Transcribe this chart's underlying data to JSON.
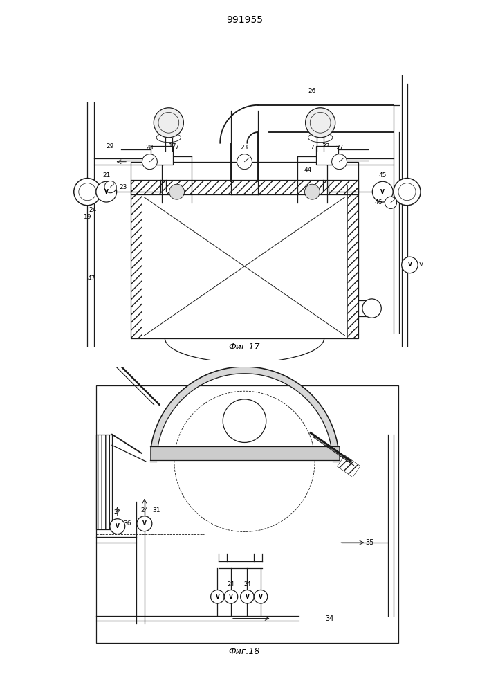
{
  "title": "991955",
  "fig17_label": "Фиг.17",
  "fig18_label": "Фиг.18",
  "line_color": "#1a1a1a",
  "label_fontsize": 7,
  "title_fontsize": 10
}
